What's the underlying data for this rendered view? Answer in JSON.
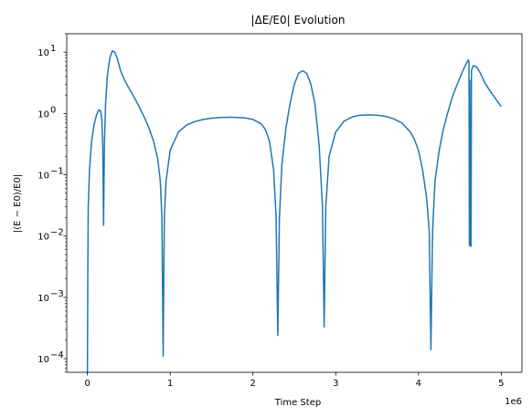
{
  "chart_data": {
    "type": "line",
    "title": "|ΔE/E0| Evolution",
    "xlabel": "Time Step",
    "ylabel": "|(E − E0)/E0|",
    "x_offset_label": "1e6",
    "y_scale": "log",
    "xlim": [
      -250000,
      5250000
    ],
    "ylim": [
      6e-05,
      20
    ],
    "x_ticks": [
      0,
      1000000,
      2000000,
      3000000,
      4000000,
      5000000
    ],
    "x_tick_labels": [
      "0",
      "1",
      "2",
      "3",
      "4",
      "5"
    ],
    "y_ticks": [
      0.0001,
      0.001,
      0.01,
      0.1,
      1,
      10
    ],
    "y_tick_labels": [
      "10",
      "10",
      "10",
      "10",
      "10",
      "10"
    ],
    "y_tick_exponents": [
      "−4",
      "−3",
      "−2",
      "−1",
      "0",
      "1"
    ],
    "grid": false,
    "line_color": "#1f77b4",
    "series": [
      {
        "values_xy": [
          [
            0,
            6e-05
          ],
          [
            5000,
            0.003
          ],
          [
            10000,
            0.03
          ],
          [
            25000,
            0.12
          ],
          [
            50000,
            0.35
          ],
          [
            80000,
            0.65
          ],
          [
            110000,
            0.95
          ],
          [
            140000,
            1.15
          ],
          [
            160000,
            1.1
          ],
          [
            175000,
            0.75
          ],
          [
            185000,
            0.3
          ],
          [
            195000,
            0.015
          ],
          [
            205000,
            0.3
          ],
          [
            220000,
            1.5
          ],
          [
            240000,
            4.0
          ],
          [
            270000,
            8.0
          ],
          [
            300000,
            10.5
          ],
          [
            330000,
            10.0
          ],
          [
            360000,
            8.0
          ],
          [
            400000,
            5.0
          ],
          [
            450000,
            3.5
          ],
          [
            500000,
            2.6
          ],
          [
            550000,
            2.0
          ],
          [
            600000,
            1.5
          ],
          [
            650000,
            1.1
          ],
          [
            700000,
            0.8
          ],
          [
            750000,
            0.55
          ],
          [
            800000,
            0.35
          ],
          [
            850000,
            0.18
          ],
          [
            880000,
            0.08
          ],
          [
            900000,
            0.02
          ],
          [
            915000,
            0.00011
          ],
          [
            930000,
            0.02
          ],
          [
            950000,
            0.08
          ],
          [
            1000000,
            0.25
          ],
          [
            1100000,
            0.5
          ],
          [
            1200000,
            0.65
          ],
          [
            1300000,
            0.74
          ],
          [
            1400000,
            0.8
          ],
          [
            1500000,
            0.84
          ],
          [
            1600000,
            0.86
          ],
          [
            1750000,
            0.87
          ],
          [
            1900000,
            0.85
          ],
          [
            2000000,
            0.8
          ],
          [
            2100000,
            0.68
          ],
          [
            2150000,
            0.55
          ],
          [
            2200000,
            0.35
          ],
          [
            2250000,
            0.12
          ],
          [
            2280000,
            0.02
          ],
          [
            2300000,
            0.00024
          ],
          [
            2320000,
            0.02
          ],
          [
            2350000,
            0.15
          ],
          [
            2400000,
            0.6
          ],
          [
            2450000,
            1.5
          ],
          [
            2500000,
            3.0
          ],
          [
            2550000,
            4.5
          ],
          [
            2600000,
            5.0
          ],
          [
            2650000,
            4.5
          ],
          [
            2700000,
            3.0
          ],
          [
            2750000,
            1.4
          ],
          [
            2800000,
            0.3
          ],
          [
            2840000,
            0.03
          ],
          [
            2860000,
            0.00033
          ],
          [
            2880000,
            0.03
          ],
          [
            2920000,
            0.2
          ],
          [
            3000000,
            0.5
          ],
          [
            3100000,
            0.75
          ],
          [
            3200000,
            0.88
          ],
          [
            3300000,
            0.94
          ],
          [
            3400000,
            0.95
          ],
          [
            3500000,
            0.94
          ],
          [
            3600000,
            0.9
          ],
          [
            3700000,
            0.82
          ],
          [
            3800000,
            0.7
          ],
          [
            3900000,
            0.5
          ],
          [
            3950000,
            0.38
          ],
          [
            4000000,
            0.25
          ],
          [
            4050000,
            0.12
          ],
          [
            4100000,
            0.04
          ],
          [
            4130000,
            0.012
          ],
          [
            4150000,
            0.00014
          ],
          [
            4170000,
            0.012
          ],
          [
            4200000,
            0.08
          ],
          [
            4250000,
            0.25
          ],
          [
            4300000,
            0.55
          ],
          [
            4350000,
            1.0
          ],
          [
            4400000,
            1.7
          ],
          [
            4450000,
            2.6
          ],
          [
            4500000,
            3.8
          ],
          [
            4550000,
            5.5
          ],
          [
            4600000,
            7.5
          ],
          [
            4610000,
            7.0
          ],
          [
            4615000,
            0.007
          ],
          [
            4620000,
            3.5
          ],
          [
            4630000,
            0.007
          ],
          [
            4635000,
            0.0068
          ],
          [
            4640000,
            5.0
          ],
          [
            4660000,
            6.0
          ],
          [
            4700000,
            5.8
          ],
          [
            4750000,
            4.5
          ],
          [
            4800000,
            3.2
          ],
          [
            4850000,
            2.5
          ],
          [
            4900000,
            2.0
          ],
          [
            4950000,
            1.6
          ],
          [
            5000000,
            1.3
          ]
        ]
      }
    ]
  }
}
